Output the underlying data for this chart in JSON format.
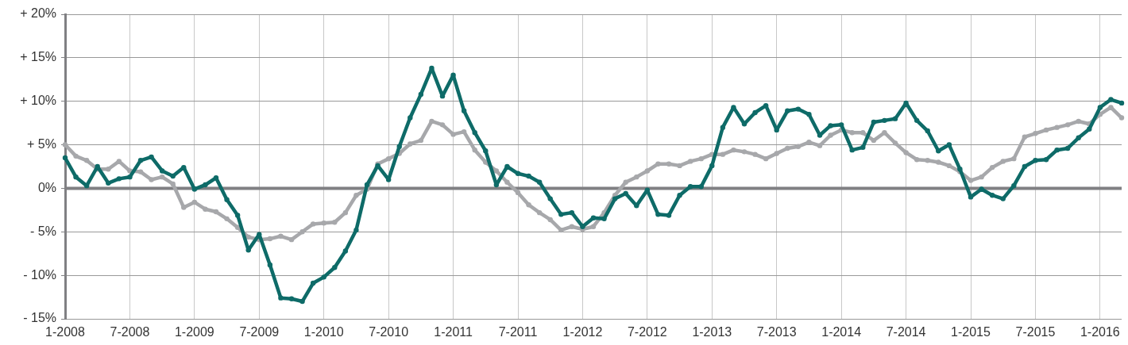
{
  "chart_data": {
    "type": "line",
    "categories": [
      "1-2008",
      null,
      null,
      null,
      null,
      null,
      "7-2008",
      null,
      null,
      null,
      null,
      null,
      "1-2009",
      null,
      null,
      null,
      null,
      null,
      "7-2009",
      null,
      null,
      null,
      null,
      null,
      "1-2010",
      null,
      null,
      null,
      null,
      null,
      "7-2010",
      null,
      null,
      null,
      null,
      null,
      "1-2011",
      null,
      null,
      null,
      null,
      null,
      "7-2011",
      null,
      null,
      null,
      null,
      null,
      "1-2012",
      null,
      null,
      null,
      null,
      null,
      "7-2012",
      null,
      null,
      null,
      null,
      null,
      "1-2013",
      null,
      null,
      null,
      null,
      null,
      "7-2013",
      null,
      null,
      null,
      null,
      null,
      "1-2014",
      null,
      null,
      null,
      null,
      null,
      "7-2014",
      null,
      null,
      null,
      null,
      null,
      "1-2015",
      null,
      null,
      null,
      null,
      null,
      "7-2015",
      null,
      null,
      null,
      null,
      null,
      "1-2016",
      null,
      null
    ],
    "series": [
      {
        "color": "#0e6b68",
        "values": [
          3.5,
          1.3,
          0.3,
          2.5,
          0.6,
          1.1,
          1.3,
          3.2,
          3.6,
          2.0,
          1.4,
          2.4,
          -0.1,
          0.4,
          1.2,
          -1.3,
          -3.1,
          -7.1,
          -5.3,
          -8.8,
          -12.6,
          -12.7,
          -13.0,
          -10.9,
          -10.2,
          -9.1,
          -7.2,
          -4.8,
          0.4,
          2.6,
          1.0,
          4.8,
          8.1,
          10.8,
          13.8,
          10.6,
          13.0,
          8.9,
          6.4,
          4.3,
          0.4,
          2.5,
          1.7,
          1.4,
          0.7,
          -1.2,
          -3.0,
          -2.8,
          -4.4,
          -3.4,
          -3.5,
          -1.2,
          -0.6,
          -2.0,
          -0.2,
          -3.0,
          -3.1,
          -0.8,
          0.2,
          0.2,
          2.6,
          7.0,
          9.3,
          7.4,
          8.7,
          9.5,
          6.7,
          8.9,
          9.1,
          8.5,
          6.1,
          7.2,
          7.3,
          4.4,
          4.7,
          7.6,
          7.8,
          8.0,
          9.8,
          7.8,
          6.6,
          4.3,
          5.0,
          2.2,
          -1.0,
          -0.1,
          -0.8,
          -1.2,
          0.3,
          2.5,
          3.2,
          3.3,
          4.4,
          4.6,
          5.8,
          6.8,
          9.3,
          10.2,
          9.8
        ]
      },
      {
        "color": "#a7a8ab",
        "values": [
          5.0,
          3.7,
          3.2,
          2.2,
          2.2,
          3.1,
          2.0,
          1.9,
          1.0,
          1.3,
          0.5,
          -2.2,
          -1.6,
          -2.4,
          -2.7,
          -3.5,
          -4.5,
          -5.6,
          -5.9,
          -5.8,
          -5.5,
          -5.9,
          -5.0,
          -4.1,
          -4.0,
          -3.9,
          -2.8,
          -0.8,
          -0.1,
          2.8,
          3.4,
          4.0,
          5.1,
          5.5,
          7.7,
          7.3,
          6.2,
          6.5,
          4.4,
          3.0,
          2.0,
          0.7,
          -0.5,
          -1.9,
          -2.8,
          -3.6,
          -4.8,
          -4.4,
          -4.7,
          -4.4,
          -2.8,
          -0.8,
          0.7,
          1.3,
          2.0,
          2.8,
          2.8,
          2.6,
          3.1,
          3.4,
          3.9,
          3.9,
          4.4,
          4.2,
          3.9,
          3.4,
          4.0,
          4.6,
          4.8,
          5.3,
          4.9,
          6.1,
          6.7,
          6.4,
          6.4,
          5.5,
          6.4,
          5.2,
          4.1,
          3.3,
          3.2,
          3.0,
          2.6,
          1.9,
          0.9,
          1.3,
          2.4,
          3.1,
          3.4,
          5.9,
          6.3,
          6.7,
          7.0,
          7.3,
          7.7,
          7.4,
          8.5,
          9.3,
          8.1
        ]
      }
    ],
    "ylim": [
      -15,
      20
    ],
    "yticks": [
      {
        "value": -15,
        "label": "- 15%"
      },
      {
        "value": -10,
        "label": "- 10%"
      },
      {
        "value": -5,
        "label": "- 5%"
      },
      {
        "value": 0,
        "label": "0%"
      },
      {
        "value": 5,
        "label": "+ 5%"
      },
      {
        "value": 10,
        "label": "+ 10%"
      },
      {
        "value": 15,
        "label": "+ 15%"
      },
      {
        "value": 20,
        "label": "+ 20%"
      }
    ],
    "ref_lines": [
      {
        "axis": "y",
        "value": 0,
        "color": "#808083"
      }
    ],
    "grid": true,
    "legend": false,
    "marker": "circle",
    "line_style": "solid"
  }
}
